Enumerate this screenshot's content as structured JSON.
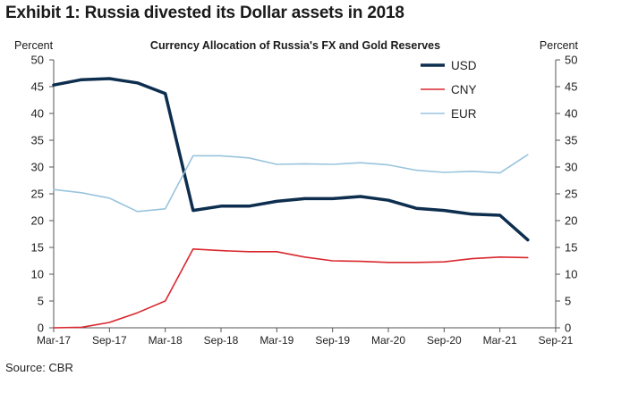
{
  "heading": "Exhibit 1: Russia divested its Dollar assets in 2018",
  "source": "Source: CBR",
  "chart_data": {
    "type": "line",
    "title": "Currency Allocation of Russia's FX and Gold Reserves",
    "ylabel_left": "Percent",
    "ylabel_right": "Percent",
    "ylim": [
      0,
      50
    ],
    "yticks": [
      0,
      5,
      10,
      15,
      20,
      25,
      30,
      35,
      40,
      45,
      50
    ],
    "xlim": [
      0,
      54
    ],
    "xticks": [
      {
        "pos": 0,
        "label": "Mar-17"
      },
      {
        "pos": 6,
        "label": "Sep-17"
      },
      {
        "pos": 12,
        "label": "Mar-18"
      },
      {
        "pos": 18,
        "label": "Sep-18"
      },
      {
        "pos": 24,
        "label": "Mar-19"
      },
      {
        "pos": 30,
        "label": "Sep-19"
      },
      {
        "pos": 36,
        "label": "Mar-20"
      },
      {
        "pos": 42,
        "label": "Sep-20"
      },
      {
        "pos": 48,
        "label": "Mar-21"
      },
      {
        "pos": 54,
        "label": "Sep-21"
      }
    ],
    "x": [
      0,
      3,
      6,
      9,
      12,
      15,
      18,
      21,
      24,
      27,
      30,
      33,
      36,
      39,
      42,
      45,
      48,
      51
    ],
    "series": [
      {
        "name": "USD",
        "color": "#0d2e4e",
        "width": 3.5,
        "values": [
          45.3,
          46.3,
          46.5,
          45.7,
          43.7,
          21.9,
          22.7,
          22.7,
          23.6,
          24.1,
          24.1,
          24.5,
          23.8,
          22.3,
          21.9,
          21.2,
          21.0,
          16.4
        ]
      },
      {
        "name": "CNY",
        "color": "#d9272e",
        "width": 1.6,
        "values": [
          0.0,
          0.1,
          1.0,
          2.8,
          5.0,
          14.7,
          14.4,
          14.2,
          14.2,
          13.2,
          12.5,
          12.4,
          12.2,
          12.2,
          12.3,
          12.9,
          13.2,
          13.1
        ]
      },
      {
        "name": "EUR",
        "color": "#99c4dd",
        "width": 1.6,
        "values": [
          25.8,
          25.2,
          24.2,
          21.7,
          22.2,
          32.1,
          32.1,
          31.7,
          30.5,
          30.6,
          30.5,
          30.8,
          30.4,
          29.4,
          29.0,
          29.2,
          28.9,
          32.3
        ]
      }
    ],
    "legend_position": "top-right"
  }
}
